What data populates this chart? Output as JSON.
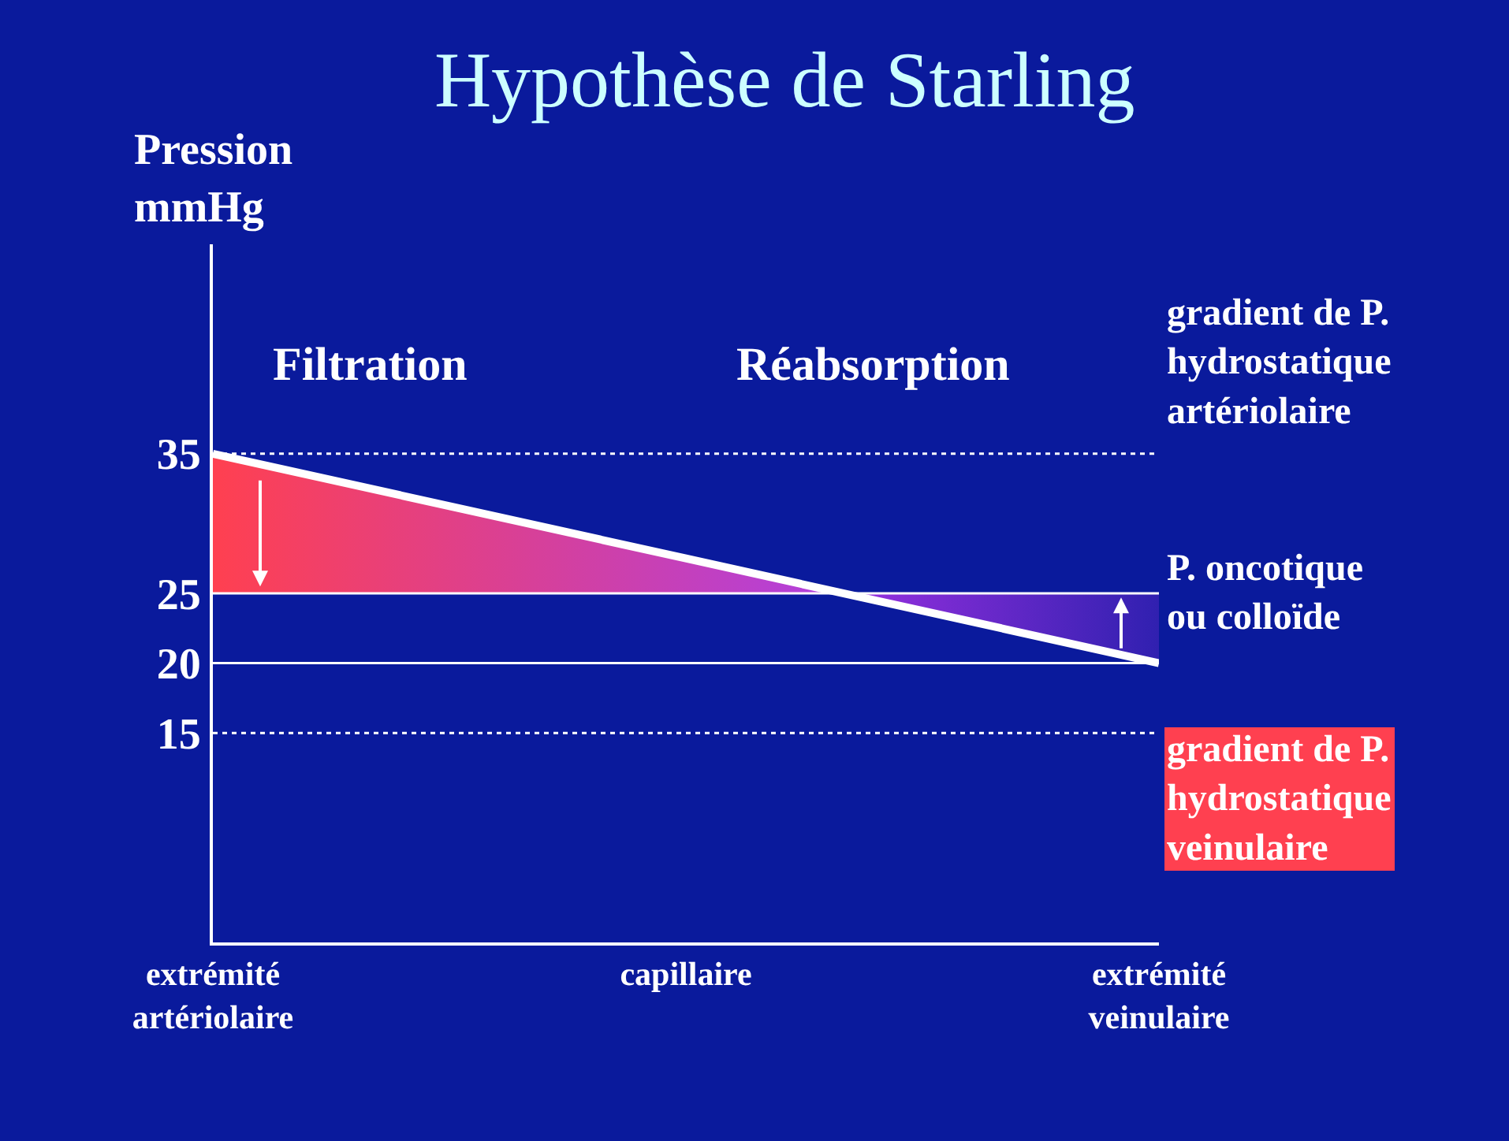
{
  "chart_data": {
    "type": "line",
    "title": "Hypothèse de Starling",
    "ylabel": "Pression\nmmHg",
    "categories": [
      "extrémité\nartériolaire",
      "capillaire",
      "extrémité\nveinulaire"
    ],
    "series": [
      {
        "color": "#ffffff",
        "values": [
          35,
          27.5,
          20
        ]
      }
    ],
    "ylim": [
      0,
      50
    ],
    "yticks": [
      15,
      20,
      25,
      35
    ],
    "grid": false,
    "marker": "none",
    "line_style": "solid",
    "ref_lines": [
      {
        "axis": "y",
        "value": 35,
        "label": "gradient de P.\nhydrostatique\nartériolaire",
        "line_style": "dotted",
        "color": "#ffffff"
      },
      {
        "axis": "y",
        "value": 25,
        "label": "P. oncotique\nou colloïde",
        "line_style": "solid",
        "color": "#ffffff"
      },
      {
        "axis": "y",
        "value": 20,
        "label": "gradient de P.\nhydrostatique\nveinulaire",
        "line_style": "solid",
        "color": "#ffffff"
      },
      {
        "axis": "y",
        "value": 15,
        "line_style": "dotted",
        "color": "#ffffff"
      }
    ],
    "annotations": [
      "Filtration",
      "Réabsorption"
    ]
  }
}
